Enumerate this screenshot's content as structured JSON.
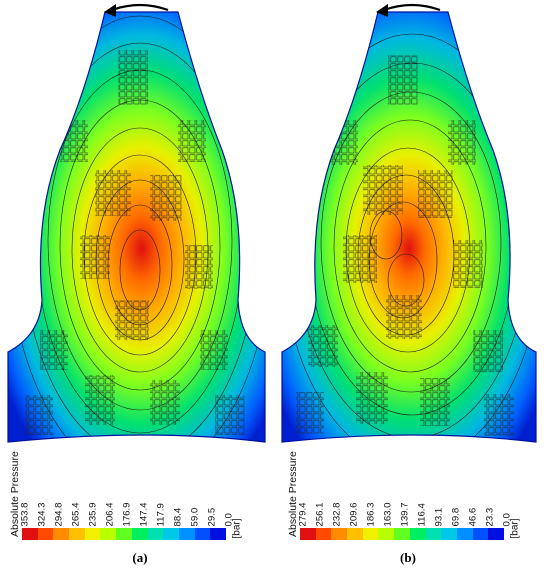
{
  "panels": [
    {
      "caption": "(a)",
      "legend_title": "Absolute Pressure",
      "unit": "[bar]",
      "ticks": [
        "353.8",
        "324.3",
        "294.8",
        "265.4",
        "235.9",
        "206.4",
        "176.9",
        "147.4",
        "117.9",
        "88.4",
        "59.0",
        "29.5",
        "0.0"
      ],
      "rotation_arrow": "counterclockwise-arrow-icon"
    },
    {
      "caption": "(b)",
      "legend_title": "Absolute Pressure",
      "unit": "[bar]",
      "ticks": [
        "279.4",
        "256.1",
        "232.8",
        "209.6",
        "186.3",
        "163.0",
        "139.7",
        "116.4",
        "93.1",
        "69.8",
        "46.6",
        "23.3",
        "0.0"
      ],
      "rotation_arrow": "counterclockwise-arrow-icon"
    }
  ],
  "colormap": [
    "#e01010",
    "#ff4a00",
    "#ff8c00",
    "#ffc000",
    "#f0f000",
    "#b8ff00",
    "#60ff20",
    "#00ef60",
    "#00e0b0",
    "#00c8e8",
    "#0090ff",
    "#0050ff",
    "#0010e0"
  ]
}
